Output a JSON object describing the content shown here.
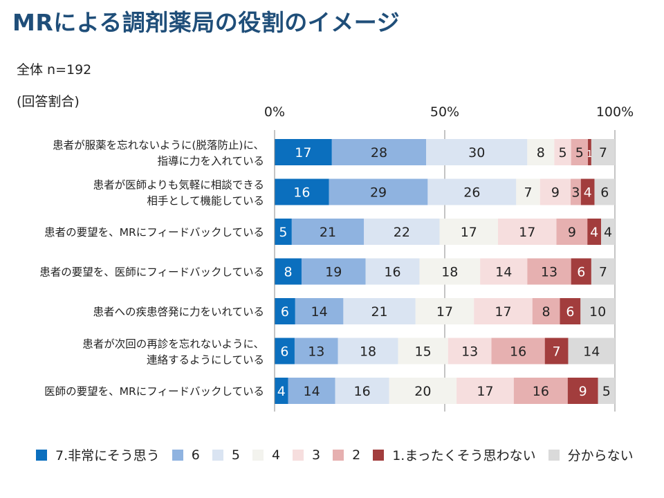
{
  "title": "MRによる調剤薬局の役割のイメージ",
  "sample_label": "全体 n=192",
  "unit_label": "(回答割合)",
  "chart_data": {
    "type": "bar",
    "orientation": "horizontal",
    "stacked": true,
    "normalized": true,
    "x_ticks": [
      "0%",
      "50%",
      "100%"
    ],
    "xlim": [
      0,
      100
    ],
    "categories": [
      "患者が服薬を忘れないように(脱落防止)に、\n指導に力を入れている",
      "患者が医師よりも気軽に相談できる\n相手として機能している",
      "患者の要望を、MRにフィードバックしている",
      "患者の要望を、医師にフィードバックしている",
      "患者への疾患啓発に力をいれている",
      "患者が次回の再診を忘れないように、\n連絡するようにしている",
      "医師の要望を、MRにフィードバックしている"
    ],
    "series": [
      {
        "name": "7.非常にそう思う",
        "color": "#0b6fbe",
        "values": [
          17,
          16,
          5,
          8,
          6,
          6,
          4
        ]
      },
      {
        "name": "6",
        "color": "#8fb3e0",
        "values": [
          28,
          29,
          21,
          19,
          14,
          13,
          14
        ]
      },
      {
        "name": "5",
        "color": "#dae4f2",
        "values": [
          30,
          26,
          22,
          16,
          21,
          18,
          16
        ]
      },
      {
        "name": "4",
        "color": "#f3f3ee",
        "values": [
          8,
          7,
          17,
          18,
          17,
          15,
          20
        ]
      },
      {
        "name": "3",
        "color": "#f6dede",
        "values": [
          5,
          9,
          17,
          14,
          17,
          13,
          17
        ]
      },
      {
        "name": "2",
        "color": "#e6b0b0",
        "values": [
          5,
          3,
          9,
          13,
          8,
          16,
          16
        ]
      },
      {
        "name": "1.まったくそう思わない",
        "color": "#a23d3d",
        "values": [
          1,
          4,
          4,
          6,
          6,
          7,
          9
        ]
      },
      {
        "name": "分からない",
        "color": "#dadada",
        "values": [
          7,
          6,
          4,
          7,
          10,
          14,
          5
        ]
      }
    ],
    "light_text_series": [
      0,
      6
    ]
  }
}
